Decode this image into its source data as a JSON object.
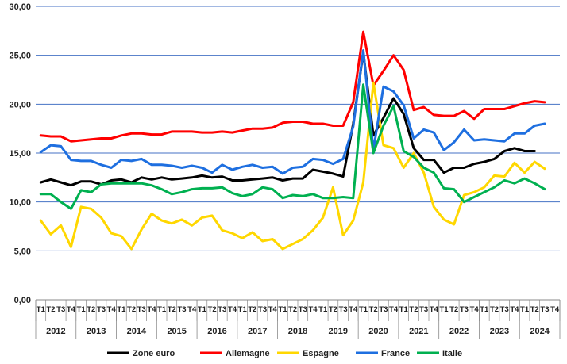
{
  "chart_data": {
    "type": "line",
    "title": "",
    "xlabel": "",
    "ylabel": "",
    "ylim": [
      0,
      30
    ],
    "yticks": [
      "0,00",
      "5,00",
      "10,00",
      "15,00",
      "20,00",
      "25,00",
      "30,00"
    ],
    "grid": "horizontal",
    "legend": "bottom",
    "quarter_labels": [
      "T1",
      "T2",
      "T3",
      "T4"
    ],
    "years": [
      "2012",
      "2013",
      "2014",
      "2015",
      "2016",
      "2017",
      "2018",
      "2019",
      "2020",
      "2021",
      "2022",
      "2023",
      "2024"
    ],
    "series": [
      {
        "name": "Zone euro",
        "color": "#000000",
        "values": [
          12.0,
          12.3,
          12.0,
          11.7,
          12.1,
          12.1,
          11.8,
          12.2,
          12.3,
          12.0,
          12.5,
          12.3,
          12.5,
          12.3,
          12.4,
          12.5,
          12.7,
          12.5,
          12.6,
          12.2,
          12.2,
          12.3,
          12.4,
          12.5,
          12.2,
          12.4,
          12.4,
          13.3,
          13.1,
          12.9,
          12.6,
          18.0,
          25.3,
          16.8,
          18.6,
          20.6,
          19.0,
          15.5,
          14.3,
          14.3,
          13.0,
          13.5,
          13.5,
          13.9,
          14.1,
          14.4,
          15.2,
          15.5,
          15.2,
          15.2
        ]
      },
      {
        "name": "Allemagne",
        "color": "#ff0000",
        "values": [
          16.8,
          16.7,
          16.7,
          16.2,
          16.3,
          16.4,
          16.5,
          16.5,
          16.8,
          17.0,
          17.0,
          16.9,
          16.9,
          17.2,
          17.2,
          17.2,
          17.1,
          17.1,
          17.2,
          17.1,
          17.3,
          17.5,
          17.5,
          17.6,
          18.1,
          18.2,
          18.2,
          18.0,
          18.0,
          17.8,
          17.8,
          20.2,
          27.4,
          21.9,
          23.4,
          25.0,
          23.5,
          19.4,
          19.7,
          18.9,
          18.8,
          18.8,
          19.3,
          18.5,
          19.5,
          19.5,
          19.5,
          19.8,
          20.1,
          20.3,
          20.2
        ]
      },
      {
        "name": "Espagne",
        "color": "#ffd700",
        "values": [
          8.1,
          6.7,
          7.6,
          5.4,
          9.5,
          9.3,
          8.4,
          6.8,
          6.5,
          5.2,
          7.2,
          8.8,
          8.1,
          7.8,
          8.2,
          7.6,
          8.4,
          8.6,
          7.1,
          6.8,
          6.3,
          6.9,
          6.0,
          6.2,
          5.2,
          5.7,
          6.2,
          7.1,
          8.4,
          11.5,
          6.6,
          8.1,
          12.0,
          22.2,
          15.8,
          15.5,
          13.5,
          15.0,
          13.0,
          9.5,
          8.2,
          7.7,
          10.7,
          11.0,
          11.5,
          12.7,
          12.6,
          14.0,
          13.0,
          14.1,
          13.4
        ]
      },
      {
        "name": "France",
        "color": "#1e6fe0",
        "values": [
          15.1,
          15.8,
          15.7,
          14.3,
          14.2,
          14.2,
          13.8,
          13.5,
          14.3,
          14.2,
          14.4,
          13.8,
          13.8,
          13.7,
          13.5,
          13.7,
          13.5,
          13.0,
          13.8,
          13.3,
          13.6,
          13.8,
          13.5,
          13.6,
          12.9,
          13.5,
          13.6,
          14.4,
          14.3,
          13.9,
          14.4,
          17.7,
          25.5,
          15.3,
          21.8,
          21.3,
          19.9,
          16.5,
          17.4,
          17.1,
          15.3,
          16.1,
          17.4,
          16.3,
          16.4,
          16.3,
          16.2,
          17.0,
          17.0,
          17.8,
          18.0
        ]
      },
      {
        "name": "Italie",
        "color": "#00b050",
        "values": [
          10.8,
          10.8,
          10.0,
          9.3,
          11.2,
          11.0,
          11.8,
          11.9,
          11.9,
          11.9,
          11.9,
          11.7,
          11.3,
          10.8,
          11.0,
          11.3,
          11.4,
          11.4,
          11.5,
          10.9,
          10.6,
          10.8,
          11.5,
          11.3,
          10.4,
          10.7,
          10.6,
          10.8,
          10.4,
          10.4,
          10.5,
          10.4,
          22.0,
          15.0,
          17.8,
          19.8,
          15.2,
          14.6,
          13.5,
          13.0,
          11.4,
          11.3,
          10.0,
          10.5,
          11.0,
          11.5,
          12.2,
          11.9,
          12.4,
          11.9,
          11.3
        ]
      }
    ]
  }
}
